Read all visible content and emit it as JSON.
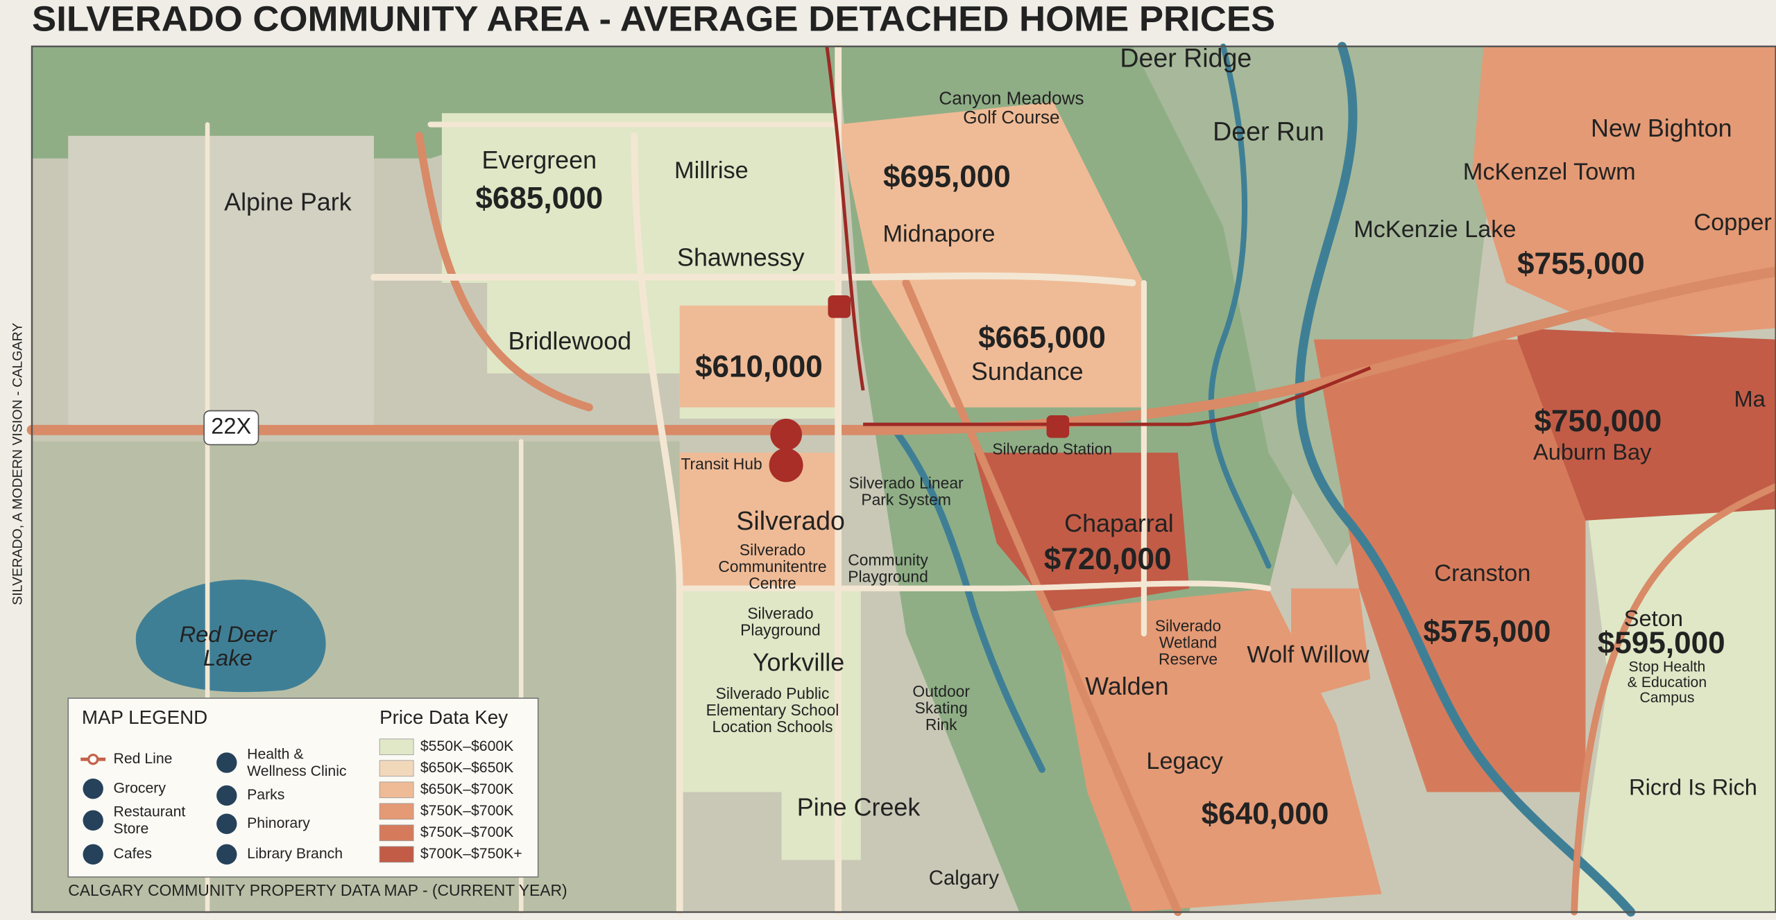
{
  "header": {
    "title": "SILVERADO COMMUNITY AREA - AVERAGE DETACHED HOME PRICES"
  },
  "side_text": "SILVERADO, A MODERN VISION - CALGARY",
  "footer": "CALGARY COMMUNITY PROPERTY DATA MAP - (CURRENT YEAR)",
  "places": [
    [
      "Deer Ridge"
    ],
    [
      "Canyon Meadows",
      "Golf Course"
    ],
    [
      "Deer Run"
    ],
    [
      "New Bighton"
    ],
    [
      "McKenzel Towm"
    ],
    [
      "McKenzie Lake"
    ],
    [
      "Copper"
    ],
    [
      "Evergreen"
    ],
    [
      "Millrise"
    ],
    [
      "Alpine Park"
    ],
    [
      "Midnapore"
    ],
    [
      "Shawnessy"
    ],
    [
      "Bridlewood"
    ],
    [
      "Sundance"
    ],
    [
      "22X"
    ],
    [
      "Silverado Station"
    ],
    [
      "Transit Hub"
    ],
    [
      "Silverado Linear",
      "Park System"
    ],
    [
      "Silverado"
    ],
    [
      "Silverado",
      "Communitentre",
      "Centre"
    ],
    [
      "Community",
      "Playground"
    ],
    [
      "Chaparral"
    ],
    [
      "Red Deer",
      "Lake"
    ],
    [
      "Silverado",
      "Playground"
    ],
    [
      "Yorkville"
    ],
    [
      "Silverado Public",
      "Elementary School",
      "Location Schools"
    ],
    [
      "Outdoor",
      "Skating",
      "Rink"
    ],
    [
      "Silverado",
      "Wetland",
      "Reserve"
    ],
    [
      "Wolf Willow"
    ],
    [
      "Walden"
    ],
    [
      "Legacy"
    ],
    [
      "Pine Creek"
    ],
    [
      "Calgary"
    ],
    [
      "Cranston"
    ],
    [
      "Seton"
    ],
    [
      "Stop Health",
      "& Education",
      "Campus"
    ],
    [
      "Auburn Bay"
    ],
    [
      "Ma"
    ],
    [
      "Ricrd Is Rich"
    ]
  ],
  "prices": [
    "$685,000",
    "$695,000",
    "$755,000",
    "$665,000",
    "$610,000",
    "$750,000",
    "$720,000",
    "$575,000",
    "$595,000",
    "$640,000"
  ],
  "legend": {
    "title": "MAP LEGEND",
    "items": [
      [
        "Red Line"
      ],
      [
        "Grocery"
      ],
      [
        "Restaurant",
        "Store"
      ],
      [
        "Cafes"
      ],
      [
        "Health &",
        "Wellness Clinic"
      ],
      [
        "Parks"
      ],
      [
        "Phinorary"
      ],
      [
        "Library Branch"
      ]
    ]
  },
  "price_key": {
    "title": "Price Data Key",
    "bins": [
      {
        "label": "$550K–$600K",
        "color": "#e0e8c8"
      },
      {
        "label": "$650K–$650K",
        "color": "#f2d8bb"
      },
      {
        "label": "$650K–$700K",
        "color": "#efbb96"
      },
      {
        "label": "$750K–$700K",
        "color": "#e49a75"
      },
      {
        "label": "$750K–$700K",
        "color": "#d57b5c"
      },
      {
        "label": "$700K–$750K+",
        "color": "#c25c47"
      }
    ]
  }
}
